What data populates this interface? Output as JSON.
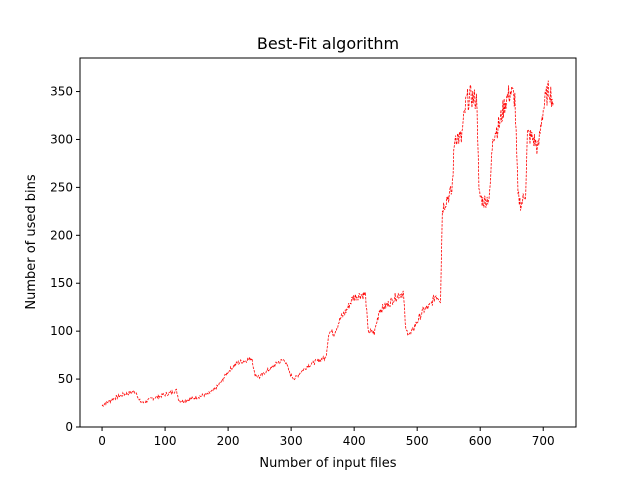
{
  "chart_data": {
    "type": "line",
    "title": "Best-Fit algorithm",
    "xlabel": "Number of input files",
    "ylabel": "Number of used bins",
    "xlim": [
      -35,
      752
    ],
    "ylim": [
      0,
      385
    ],
    "xticks": [
      0,
      100,
      200,
      300,
      400,
      500,
      600,
      700
    ],
    "yticks": [
      0,
      50,
      100,
      150,
      200,
      250,
      300,
      350
    ],
    "grid": false,
    "series": [
      {
        "color": "#ff0000",
        "line_style": "dashed",
        "points": [
          [
            0,
            22
          ],
          [
            5,
            25
          ],
          [
            10,
            26
          ],
          [
            20,
            30
          ],
          [
            30,
            33
          ],
          [
            40,
            35
          ],
          [
            50,
            37
          ],
          [
            55,
            36
          ],
          [
            58,
            28
          ],
          [
            65,
            25
          ],
          [
            70,
            27
          ],
          [
            80,
            30
          ],
          [
            90,
            32
          ],
          [
            100,
            34
          ],
          [
            110,
            36
          ],
          [
            118,
            38
          ],
          [
            122,
            28
          ],
          [
            130,
            27
          ],
          [
            140,
            29
          ],
          [
            150,
            31
          ],
          [
            160,
            33
          ],
          [
            170,
            35
          ],
          [
            180,
            40
          ],
          [
            190,
            48
          ],
          [
            200,
            58
          ],
          [
            210,
            65
          ],
          [
            220,
            68
          ],
          [
            230,
            70
          ],
          [
            238,
            72
          ],
          [
            242,
            55
          ],
          [
            250,
            52
          ],
          [
            260,
            58
          ],
          [
            270,
            62
          ],
          [
            280,
            68
          ],
          [
            290,
            70
          ],
          [
            298,
            56
          ],
          [
            305,
            50
          ],
          [
            315,
            57
          ],
          [
            325,
            63
          ],
          [
            335,
            67
          ],
          [
            345,
            70
          ],
          [
            355,
            72
          ],
          [
            360,
            100
          ],
          [
            368,
            98
          ],
          [
            378,
            113
          ],
          [
            388,
            122
          ],
          [
            398,
            135
          ],
          [
            410,
            138
          ],
          [
            418,
            138
          ],
          [
            422,
            100
          ],
          [
            432,
            98
          ],
          [
            440,
            122
          ],
          [
            450,
            126
          ],
          [
            460,
            132
          ],
          [
            470,
            138
          ],
          [
            478,
            140
          ],
          [
            482,
            100
          ],
          [
            490,
            97
          ],
          [
            500,
            110
          ],
          [
            510,
            122
          ],
          [
            520,
            126
          ],
          [
            530,
            138
          ],
          [
            537,
            133
          ],
          [
            540,
            228
          ],
          [
            548,
            240
          ],
          [
            555,
            245
          ],
          [
            560,
            305
          ],
          [
            570,
            300
          ],
          [
            578,
            340
          ],
          [
            585,
            345
          ],
          [
            595,
            340
          ],
          [
            598,
            243
          ],
          [
            605,
            235
          ],
          [
            615,
            240
          ],
          [
            620,
            305
          ],
          [
            630,
            315
          ],
          [
            640,
            340
          ],
          [
            648,
            350
          ],
          [
            655,
            343
          ],
          [
            660,
            240
          ],
          [
            665,
            232
          ],
          [
            672,
            245
          ],
          [
            675,
            305
          ],
          [
            685,
            300
          ],
          [
            692,
            290
          ],
          [
            698,
            325
          ],
          [
            705,
            345
          ],
          [
            710,
            353
          ],
          [
            716,
            338
          ]
        ]
      }
    ]
  }
}
